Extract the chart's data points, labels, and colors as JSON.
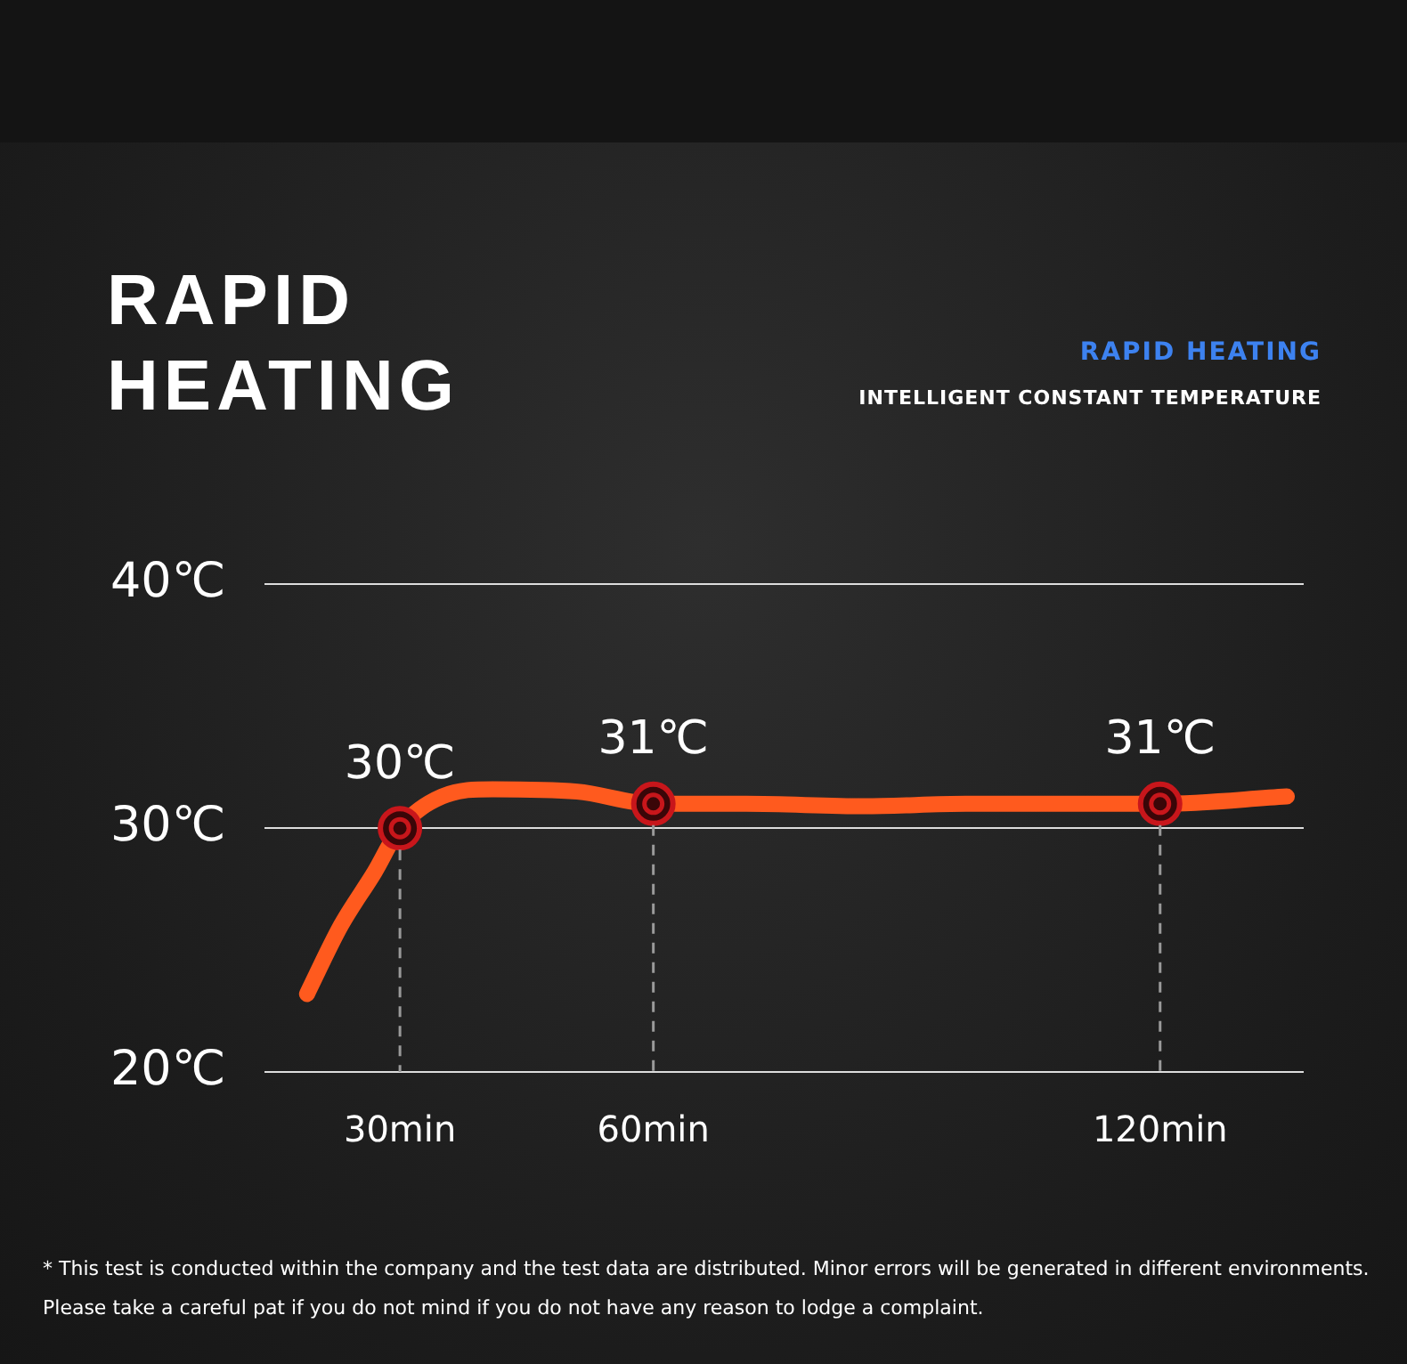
{
  "chart_data": {
    "type": "line",
    "title": "RAPID HEATING",
    "subtitle": "RAPID HEATING",
    "annotations": [
      "INTELLIGENT CONSTANT TEMPERATURE",
      "* This test is conducted within the company and the test data are distributed. Minor errors will be generated in different environments. Please take a careful pat if you do not mind if you do not have any reason to lodge a complaint."
    ],
    "xlim": [
      14,
      137
    ],
    "xticks": [
      {
        "value": 30,
        "label": "30min"
      },
      {
        "value": 60,
        "label": "60min"
      },
      {
        "value": 120,
        "label": "120min"
      }
    ],
    "ylim": [
      20,
      40
    ],
    "yticks": [
      {
        "value": 20,
        "label": "20℃"
      },
      {
        "value": 30,
        "label": "30℃"
      },
      {
        "value": 40,
        "label": "40℃"
      }
    ],
    "grid": "y",
    "series": [
      {
        "color": "#ff5a1e",
        "marker": "none",
        "x": [
          19,
          23,
          27,
          30,
          35,
          41,
          51,
          60,
          71,
          85,
          97,
          111,
          120,
          135
        ],
        "values": [
          23.2,
          26,
          28.2,
          30,
          31.3,
          31.6,
          31.5,
          31,
          31,
          30.9,
          31,
          31,
          31,
          31.3
        ]
      },
      {
        "type": "scatter",
        "color": "#c8161b",
        "marker": "circle",
        "x": [
          30,
          60,
          120
        ],
        "values": [
          30,
          31,
          31
        ],
        "value_labels": [
          "30℃",
          "31℃",
          "31℃"
        ]
      }
    ]
  }
}
